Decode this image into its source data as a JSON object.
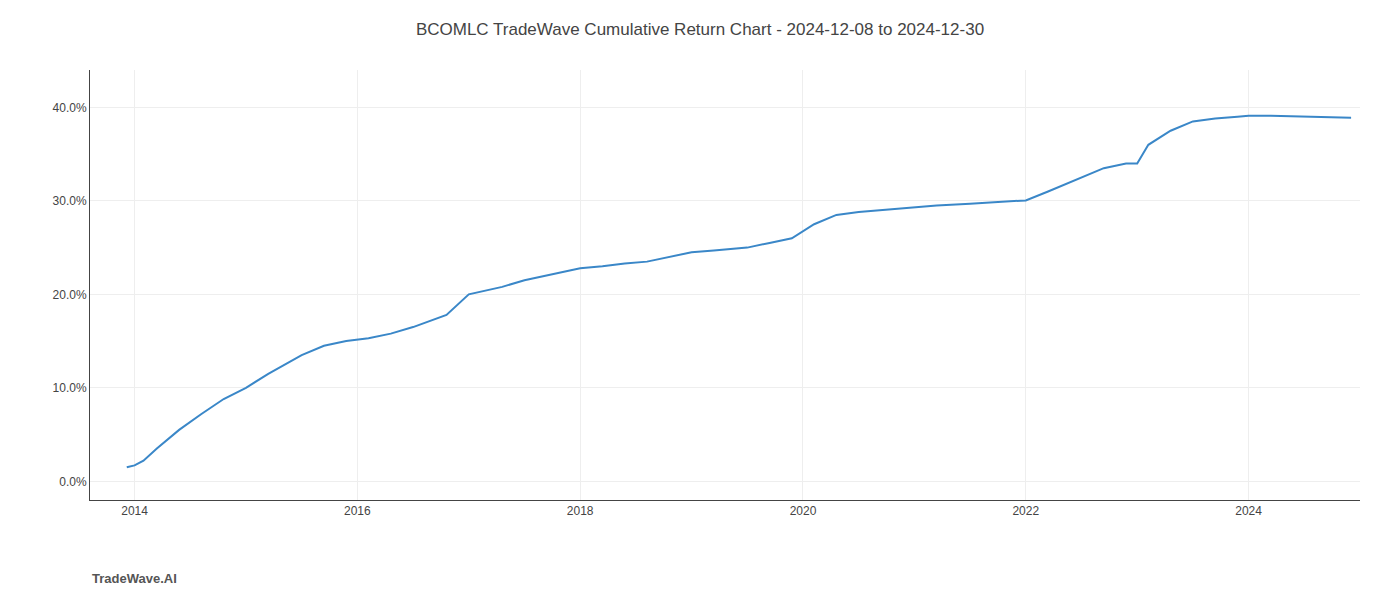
{
  "chart_data": {
    "type": "line",
    "title": "BCOMLC TradeWave Cumulative Return Chart - 2024-12-08 to 2024-12-30",
    "annotations": [
      "TradeWave.AI"
    ],
    "x": [
      2013.93,
      2014.0,
      2014.08,
      2014.2,
      2014.4,
      2014.6,
      2014.8,
      2015.0,
      2015.2,
      2015.5,
      2015.7,
      2015.9,
      2016.1,
      2016.3,
      2016.5,
      2016.8,
      2017.0,
      2017.3,
      2017.5,
      2017.8,
      2018.0,
      2018.2,
      2018.4,
      2018.6,
      2018.8,
      2019.0,
      2019.2,
      2019.5,
      2019.7,
      2019.9,
      2020.1,
      2020.3,
      2020.5,
      2020.7,
      2020.9,
      2021.0,
      2021.2,
      2021.5,
      2021.7,
      2021.9,
      2022.0,
      2022.2,
      2022.5,
      2022.7,
      2022.9,
      2023.0,
      2023.1,
      2023.3,
      2023.5,
      2023.7,
      2023.9,
      2024.0,
      2024.2,
      2024.5,
      2024.7,
      2024.92
    ],
    "values": [
      1.5,
      1.7,
      2.2,
      3.5,
      5.5,
      7.2,
      8.8,
      10.0,
      11.5,
      13.5,
      14.5,
      15.0,
      15.3,
      15.8,
      16.5,
      17.8,
      20.0,
      20.8,
      21.5,
      22.3,
      22.8,
      23.0,
      23.3,
      23.5,
      24.0,
      24.5,
      24.7,
      25.0,
      25.5,
      26.0,
      27.5,
      28.5,
      28.8,
      29.0,
      29.2,
      29.3,
      29.5,
      29.7,
      29.85,
      30.0,
      30.05,
      31.0,
      32.5,
      33.5,
      34.0,
      34.0,
      36.0,
      37.5,
      38.5,
      38.8,
      39.0,
      39.1,
      39.1,
      39.0,
      38.9,
      38.9
    ],
    "color": "#3a87c8",
    "xlim": [
      2013.6,
      2025.0
    ],
    "xticks": [
      2014,
      2016,
      2018,
      2020,
      2022,
      2024
    ],
    "ylim": [
      -2,
      44
    ],
    "yticks": [
      {
        "value": 0,
        "label": "0.0%"
      },
      {
        "value": 10,
        "label": "10.0%"
      },
      {
        "value": 20,
        "label": "20.0%"
      },
      {
        "value": 30,
        "label": "30.0%"
      },
      {
        "value": 40,
        "label": "40.0%"
      }
    ],
    "grid": true
  }
}
